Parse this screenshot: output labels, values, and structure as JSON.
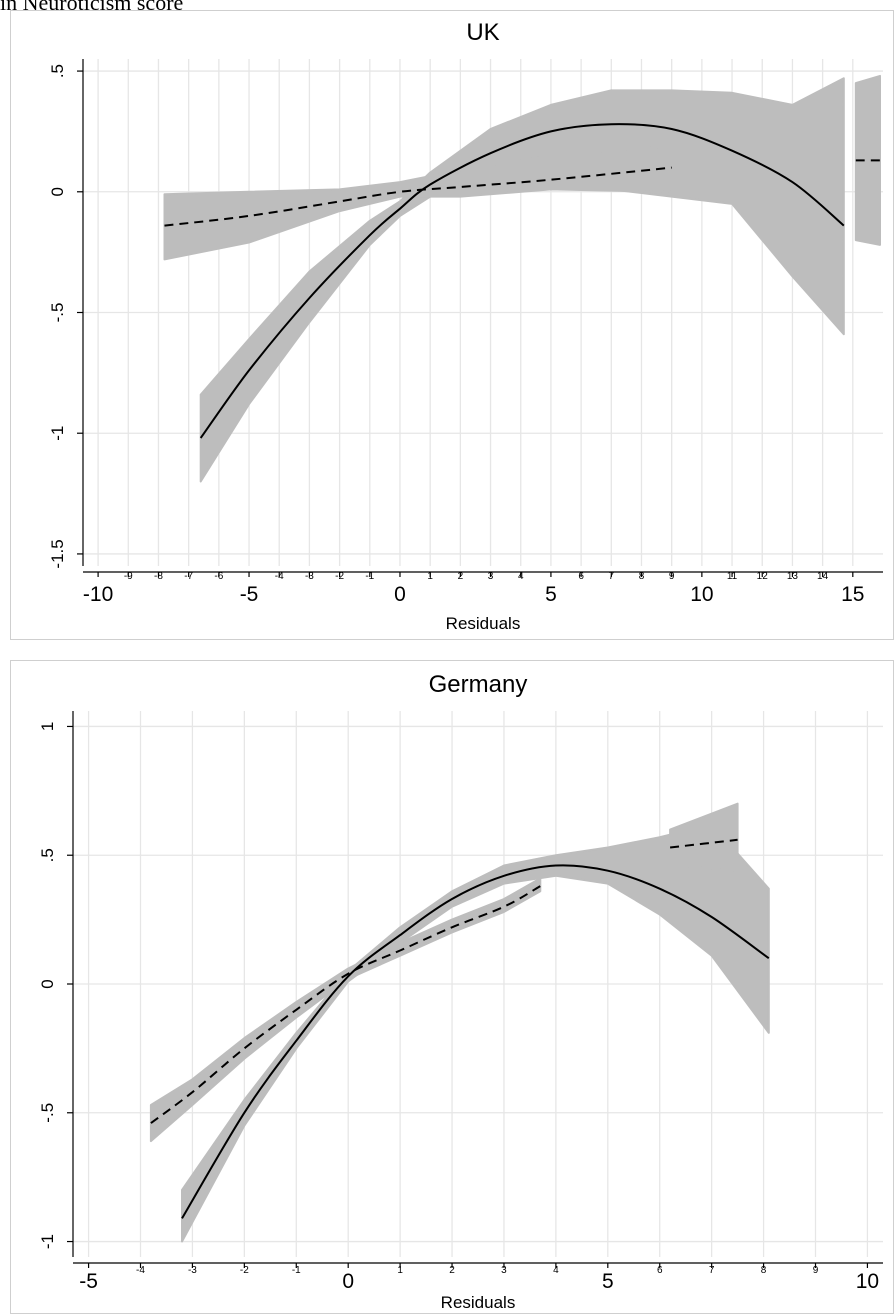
{
  "caption": "in Neuroticism score",
  "chart_data": [
    {
      "type": "line",
      "title": "UK",
      "xlabel": "Residuals",
      "ylabel": "",
      "xlim": [
        -10.5,
        16
      ],
      "ylim": [
        -1.55,
        0.55
      ],
      "grid": true,
      "x_major_ticks": [
        -10,
        -5,
        0,
        5,
        10,
        15
      ],
      "x_minor_ticks": [
        -9,
        -8,
        -7,
        -6,
        -4,
        -3,
        -2,
        -1,
        1,
        2,
        3,
        4,
        6,
        7,
        8,
        9,
        11,
        12,
        13,
        14
      ],
      "y_ticks": [
        -1.5,
        -1,
        -0.5,
        0,
        0.5
      ],
      "y_tick_labels": [
        "-1.5",
        "-1",
        "-.5",
        "0",
        ".5"
      ],
      "series": [
        {
          "style": "solid",
          "x": [
            -6.6,
            -5,
            -3,
            -1,
            0,
            1,
            3,
            5,
            7,
            9,
            11,
            13,
            14.7
          ],
          "y": [
            -1.02,
            -0.74,
            -0.44,
            -0.18,
            -0.07,
            0.03,
            0.16,
            0.25,
            0.28,
            0.26,
            0.17,
            0.04,
            -0.14
          ],
          "ci_lower": [
            -1.2,
            -0.88,
            -0.54,
            -0.22,
            -0.1,
            -0.02,
            0.01,
            0.02,
            0.01,
            -0.02,
            -0.05,
            -0.35,
            -0.59
          ],
          "ci_upper": [
            -0.84,
            -0.61,
            -0.33,
            -0.12,
            -0.04,
            0.08,
            0.26,
            0.36,
            0.42,
            0.42,
            0.41,
            0.36,
            0.47
          ]
        },
        {
          "style": "dashed",
          "x": [
            -7.8,
            -5,
            -2,
            0,
            2,
            5,
            9
          ],
          "y": [
            -0.14,
            -0.1,
            -0.04,
            0.0,
            0.02,
            0.05,
            0.1
          ],
          "ci_lower": [
            -0.28,
            -0.21,
            -0.08,
            -0.02,
            -0.02,
            0.01,
            0.0
          ],
          "ci_upper": [
            -0.01,
            0.0,
            0.01,
            0.04,
            0.09,
            0.15,
            0.19
          ]
        },
        {
          "style": "dashed",
          "x": [
            15.1,
            15.9
          ],
          "y": [
            0.13,
            0.13
          ],
          "ci_lower": [
            -0.2,
            -0.22
          ],
          "ci_upper": [
            0.45,
            0.48
          ]
        }
      ]
    },
    {
      "type": "line",
      "title": "Germany",
      "xlabel": "Residuals",
      "ylabel": "",
      "xlim": [
        -5.3,
        10.3
      ],
      "ylim": [
        -1.06,
        1.06
      ],
      "grid": true,
      "x_major_ticks": [
        -5,
        0,
        5,
        10
      ],
      "x_minor_ticks": [
        -4,
        -3,
        -2,
        -1,
        1,
        2,
        3,
        4,
        6,
        7,
        8,
        9
      ],
      "y_ticks": [
        -1,
        -0.5,
        0,
        0.5,
        1
      ],
      "y_tick_labels": [
        "-1",
        "-.5",
        "0",
        ".5",
        "1"
      ],
      "series": [
        {
          "style": "solid",
          "x": [
            -3.2,
            -2,
            -1,
            0,
            1,
            2,
            3,
            4,
            5,
            6,
            7,
            8.1
          ],
          "y": [
            -0.91,
            -0.5,
            -0.22,
            0.03,
            0.19,
            0.33,
            0.42,
            0.46,
            0.44,
            0.37,
            0.26,
            0.1
          ],
          "ci_lower": [
            -1.0,
            -0.55,
            -0.25,
            0.01,
            0.16,
            0.3,
            0.39,
            0.42,
            0.39,
            0.27,
            0.11,
            -0.19
          ],
          "ci_upper": [
            -0.8,
            -0.45,
            -0.19,
            0.05,
            0.22,
            0.36,
            0.46,
            0.5,
            0.53,
            0.57,
            0.62,
            0.37
          ]
        },
        {
          "style": "dashed",
          "x": [
            -3.8,
            -3,
            -2,
            -1,
            0,
            1,
            2,
            3,
            3.7
          ],
          "y": [
            -0.54,
            -0.42,
            -0.25,
            -0.1,
            0.04,
            0.13,
            0.22,
            0.3,
            0.38
          ],
          "ci_lower": [
            -0.61,
            -0.47,
            -0.29,
            -0.13,
            0.02,
            0.11,
            0.2,
            0.28,
            0.36
          ],
          "ci_upper": [
            -0.47,
            -0.37,
            -0.21,
            -0.07,
            0.06,
            0.16,
            0.25,
            0.33,
            0.41
          ]
        },
        {
          "style": "dashed",
          "x": [
            6.2,
            7.5
          ],
          "y": [
            0.53,
            0.56
          ],
          "ci_lower": [
            0.46,
            0.44
          ],
          "ci_upper": [
            0.6,
            0.7
          ]
        }
      ]
    }
  ]
}
